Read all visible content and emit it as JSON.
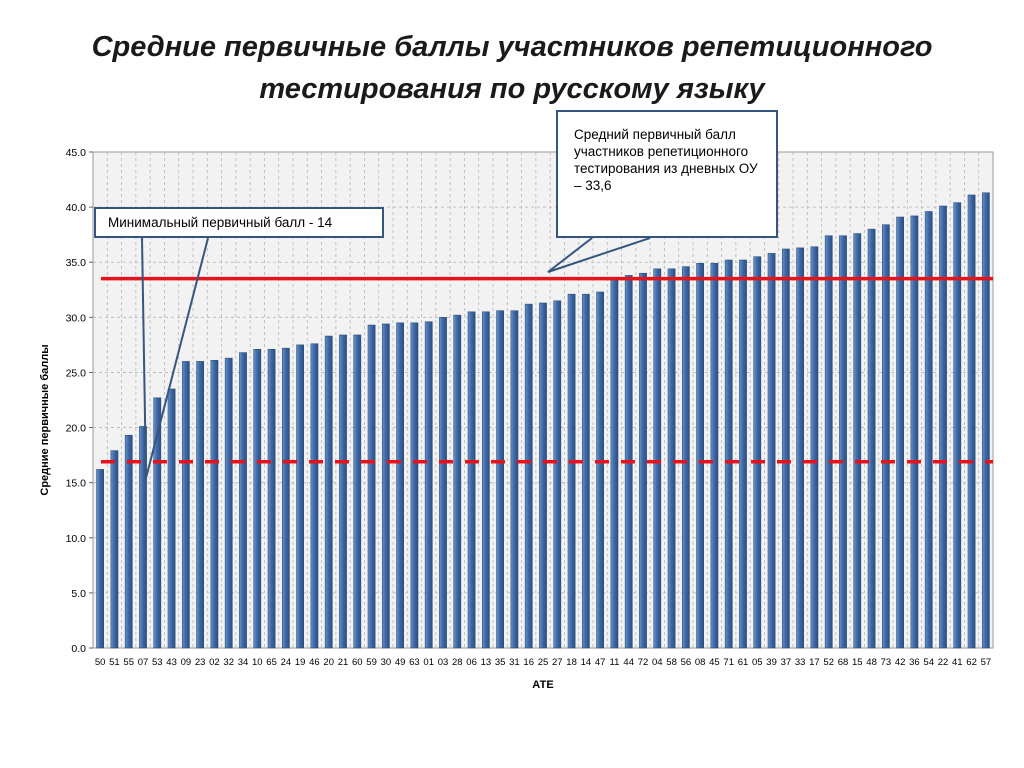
{
  "title": {
    "line1": "Средние первичные баллы участников репетиционного",
    "line2": "тестирования по русскому языку"
  },
  "annotations": {
    "min_label": "Минимальный первичный балл - 14",
    "avg_label": "Средний первичный балл участников репетиционного тестирования из дневных ОУ – 33,6"
  },
  "colors": {
    "bar": "#3f6aa6",
    "bar_highlight": "#6b93c9",
    "avg_line": "#e8131a",
    "min_line": "#e8131a",
    "callout_border": "#36557f",
    "plot_background": "#f2f2f2"
  },
  "chart_data": {
    "type": "bar",
    "xlabel": "АТЕ",
    "ylabel": "Средние первичные баллы",
    "ylim": [
      0,
      45
    ],
    "ytick_step": 5,
    "ytick_labels": [
      "0.0",
      "5.0",
      "10.0",
      "15.0",
      "20.0",
      "25.0",
      "30.0",
      "35.0",
      "40.0",
      "45.0"
    ],
    "grid": true,
    "categories": [
      "50",
      "51",
      "55",
      "07",
      "53",
      "43",
      "09",
      "23",
      "02",
      "32",
      "34",
      "10",
      "65",
      "24",
      "19",
      "46",
      "20",
      "21",
      "60",
      "59",
      "30",
      "49",
      "63",
      "01",
      "03",
      "28",
      "06",
      "13",
      "35",
      "31",
      "16",
      "25",
      "27",
      "18",
      "14",
      "47",
      "11",
      "44",
      "72",
      "04",
      "58",
      "56",
      "08",
      "45",
      "71",
      "61",
      "05",
      "39",
      "37",
      "33",
      "17",
      "52",
      "68",
      "15",
      "48",
      "73",
      "42",
      "36",
      "54",
      "22",
      "41",
      "62",
      "57"
    ],
    "values": [
      16.2,
      17.9,
      19.3,
      20.1,
      22.7,
      23.5,
      26.0,
      26.0,
      26.1,
      26.3,
      26.8,
      27.1,
      27.1,
      27.2,
      27.5,
      27.6,
      28.3,
      28.4,
      28.4,
      29.3,
      29.4,
      29.5,
      29.5,
      29.6,
      30.0,
      30.2,
      30.5,
      30.5,
      30.6,
      30.6,
      31.2,
      31.3,
      31.5,
      32.1,
      32.1,
      32.3,
      33.5,
      33.8,
      34.0,
      34.4,
      34.4,
      34.6,
      34.9,
      34.9,
      35.2,
      35.2,
      35.5,
      35.8,
      36.2,
      36.3,
      36.4,
      37.4,
      37.4,
      37.6,
      38.0,
      38.4,
      39.1,
      39.2,
      39.6,
      40.1,
      40.4,
      41.1,
      41.3
    ],
    "reference_lines": [
      {
        "label": "Средний первичный балл участников репетиционного тестирования из дневных ОУ – 33,6",
        "value": 33.6,
        "style": "solid"
      },
      {
        "label": "Минимальный первичный балл - 14",
        "value": 14,
        "style": "dashed"
      }
    ]
  }
}
